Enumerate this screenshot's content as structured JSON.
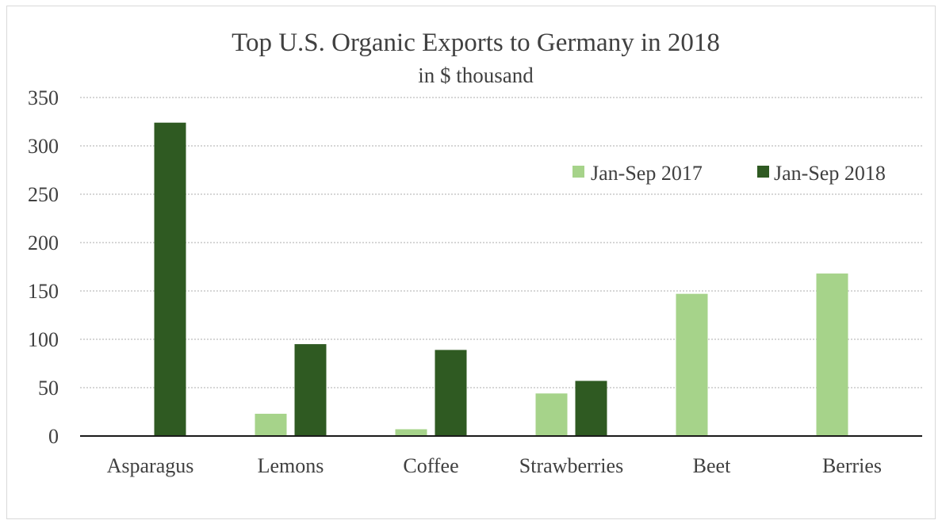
{
  "chart_data": {
    "type": "bar",
    "title": "Top U.S. Organic Exports to Germany in 2018",
    "subtitle": "in $ thousand",
    "categories": [
      "Asparagus",
      "Lemons",
      "Coffee",
      "Strawberries",
      "Beet",
      "Berries"
    ],
    "series": [
      {
        "name": "Jan-Sep 2017",
        "color": "#a6d38a",
        "values": [
          0,
          23,
          7,
          44,
          147,
          168
        ]
      },
      {
        "name": "Jan-Sep 2018",
        "color": "#2f5a22",
        "values": [
          324,
          95,
          89,
          57,
          0,
          0
        ]
      }
    ],
    "ylim": [
      0,
      350
    ],
    "yticks": [
      0,
      50,
      100,
      150,
      200,
      250,
      300,
      350
    ],
    "grid": true,
    "legend_position": "top-right"
  }
}
